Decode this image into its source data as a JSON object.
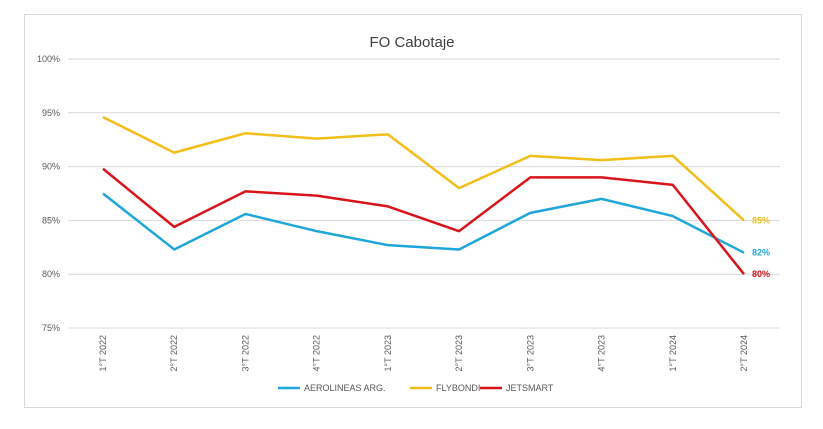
{
  "chart_data": {
    "type": "line",
    "title": "FO Cabotaje",
    "categories": [
      "1°T 2022",
      "2°T 2022",
      "3°T 2022",
      "4°T 2022",
      "1°T 2023",
      "2°T 2023",
      "3°T 2023",
      "4°T 2023",
      "1°T 2024",
      "2°T 2024"
    ],
    "ylim": [
      0.75,
      1.0
    ],
    "yticks": [
      "75%",
      "80%",
      "85%",
      "90%",
      "95%",
      "100%"
    ],
    "grid": true,
    "legend": "bottom",
    "series": [
      {
        "name": "AEROLINEAS ARG.",
        "color": "#1ea7d8",
        "values": [
          0.875,
          0.823,
          0.856,
          0.84,
          0.827,
          0.823,
          0.857,
          0.87,
          0.854,
          0.82
        ],
        "end_label": "82%"
      },
      {
        "name": "FLYBONDI",
        "color": "#f2be1a",
        "values": [
          0.946,
          0.913,
          0.931,
          0.926,
          0.93,
          0.88,
          0.91,
          0.906,
          0.91,
          0.85
        ],
        "end_label": "85%"
      },
      {
        "name": "JETSMART",
        "color": "#d9141b",
        "values": [
          0.898,
          0.844,
          0.877,
          0.873,
          0.863,
          0.84,
          0.89,
          0.89,
          0.883,
          0.8
        ],
        "end_label": "80%"
      }
    ]
  }
}
